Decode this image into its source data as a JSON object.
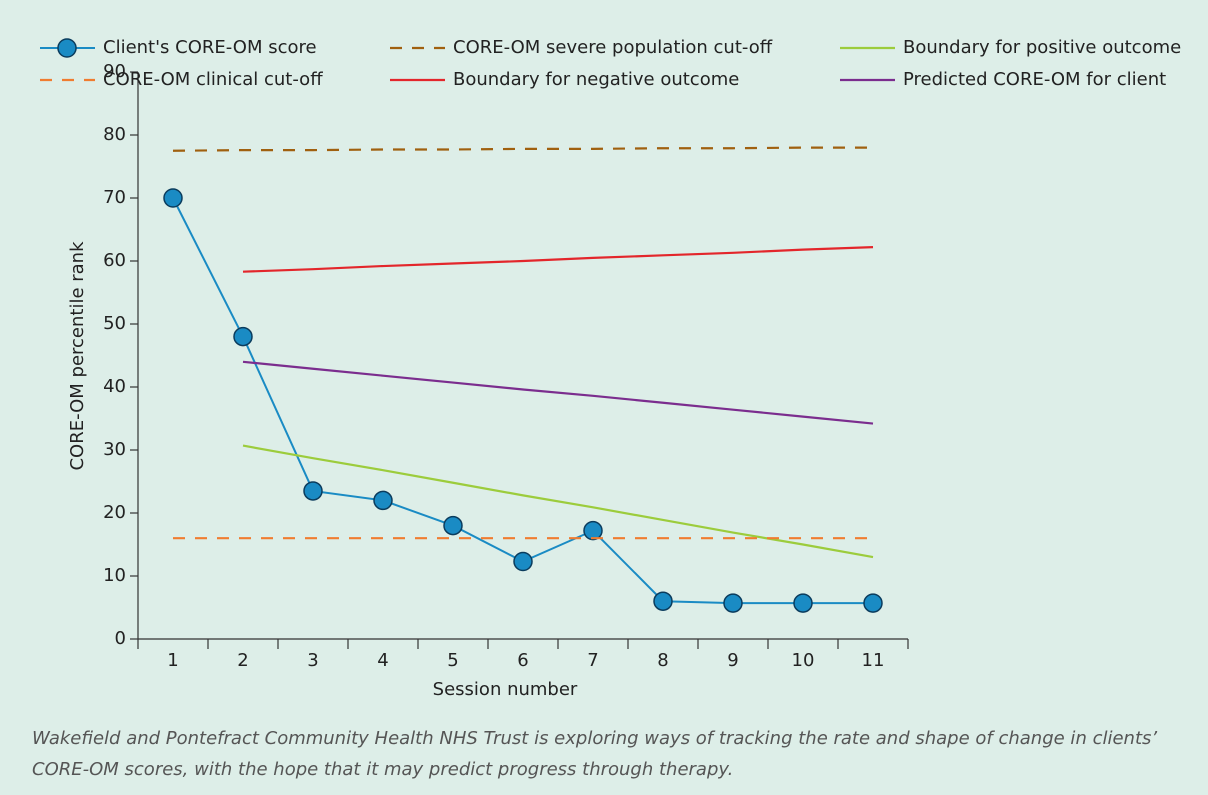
{
  "chart_data": {
    "type": "line",
    "x_label": "Session number",
    "y_label": "CORE-OM percentile rank",
    "categories": [
      "1",
      "2",
      "3",
      "4",
      "5",
      "6",
      "7",
      "8",
      "9",
      "10",
      "11"
    ],
    "ylim": [
      0,
      90
    ],
    "yticks": [
      0,
      10,
      20,
      30,
      40,
      50,
      60,
      70,
      80,
      90
    ],
    "series": [
      {
        "name": "Client's CORE-OM score",
        "color": "#1a8bc4",
        "markers": true,
        "values": [
          70,
          48,
          23.5,
          22,
          18,
          12.3,
          17.2,
          6,
          5.7,
          5.7,
          5.7
        ]
      },
      {
        "name": "CORE-OM severe population cut-off",
        "color": "#a0600f",
        "dashed": true,
        "values": [
          77.5,
          77.6,
          77.6,
          77.7,
          77.7,
          77.8,
          77.8,
          77.9,
          77.9,
          78,
          78
        ]
      },
      {
        "name": "Boundary for positive outcome",
        "color": "#9ccc3c",
        "values": [
          null,
          30.7,
          28.7,
          26.8,
          24.8,
          22.8,
          20.9,
          18.9,
          16.9,
          15.0,
          13.0
        ]
      },
      {
        "name": "CORE-OM clinical cut-off",
        "color": "#f07c30",
        "dashed": true,
        "values": [
          16,
          16,
          16,
          16,
          16,
          16,
          16,
          16,
          16,
          16,
          16
        ]
      },
      {
        "name": "Boundary for negative outcome",
        "color": "#e3262b",
        "values": [
          null,
          58.3,
          58.7,
          59.2,
          59.6,
          60.0,
          60.5,
          60.9,
          61.3,
          61.8,
          62.2
        ]
      },
      {
        "name": "Predicted CORE-OM for client",
        "color": "#7b2d8e",
        "values": [
          null,
          44,
          42.9,
          41.8,
          40.7,
          39.6,
          38.6,
          37.5,
          36.4,
          35.3,
          34.2
        ]
      }
    ]
  },
  "caption": [
    "Wakefield and Pontefract Community Health NHS Trust is exploring ways of tracking the rate and shape of change in clients’",
    "CORE-OM scores, with the hope that it may predict progress through therapy."
  ]
}
